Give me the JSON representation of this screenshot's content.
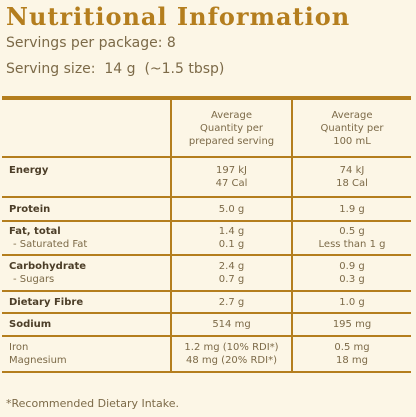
{
  "title": "Nutritional Information",
  "servings_per_package": "Servings per package: 8",
  "serving_size": "Serving size:  14 g  (~1.5 tbsp)",
  "table": {
    "header": {
      "col2": [
        "Average",
        "Quantity per",
        "prepared serving"
      ],
      "col3": [
        "Average",
        "Quantity per",
        "100 mL"
      ]
    },
    "rows": {
      "energy": {
        "label": "Energy",
        "col2": [
          "197 kJ",
          "47 Cal"
        ],
        "col3": [
          "74 kJ",
          "18 Cal"
        ]
      },
      "protein": {
        "label": "Protein",
        "col2": "5.0 g",
        "col3": "1.9 g"
      },
      "fat": {
        "label": "Fat, total",
        "sublabel": "- Saturated Fat",
        "col2": [
          "1.4 g",
          "0.1 g"
        ],
        "col3": [
          "0.5 g",
          "Less than 1 g"
        ]
      },
      "carbohydrate": {
        "label": "Carbohydrate",
        "sublabel": "-  Sugars",
        "col2": [
          "2.4 g",
          "0.7 g"
        ],
        "col3": [
          "0.9 g",
          "0.3 g"
        ]
      },
      "fibre": {
        "label": "Dietary Fibre",
        "col2": "2.7 g",
        "col3": "1.0 g"
      },
      "sodium": {
        "label": "Sodium",
        "col2": "514 mg",
        "col3": "195 mg"
      },
      "minerals": {
        "labels": [
          "Iron",
          "Magnesium"
        ],
        "col2": [
          "1.2 mg (10% RDI*)",
          "48 mg (20% RDI*)"
        ],
        "col3": [
          "0.5 mg",
          "18 mg"
        ]
      }
    }
  },
  "footnote": "*Recommended Dietary Intake.",
  "colors": {
    "accent": "#B47E1E",
    "text": "#7C6A48",
    "bold_text": "#4C3E28",
    "background": "#FCF6E6"
  }
}
